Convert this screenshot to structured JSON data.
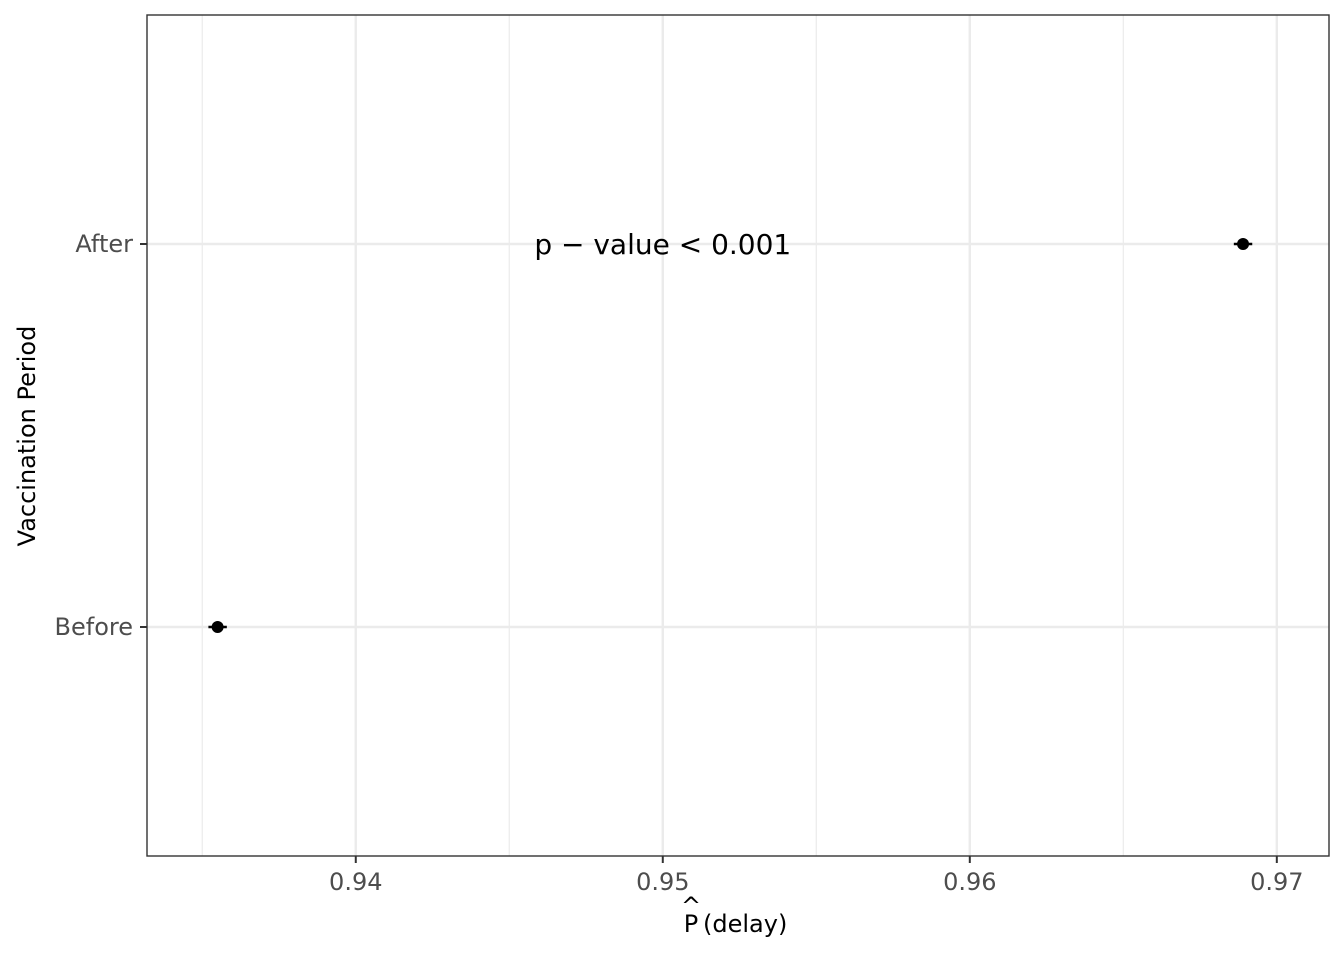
{
  "chart_data": {
    "type": "scatter",
    "xlabel": "(delay)",
    "xlabel_symbol": "P",
    "xlabel_hat": "^",
    "ylabel": "Vaccination Period",
    "xlim": [
      0.9332,
      0.9717
    ],
    "x_ticks": [
      0.94,
      0.95,
      0.96,
      0.97
    ],
    "x_tick_labels": [
      "0.94",
      "0.95",
      "0.96",
      "0.97"
    ],
    "x_minor_ticks": [
      0.935,
      0.945,
      0.955,
      0.965
    ],
    "categories": [
      "Before",
      "After"
    ],
    "points": [
      {
        "category": "After",
        "x": 0.9689,
        "ci_low": 0.9686,
        "ci_high": 0.9692
      },
      {
        "category": "Before",
        "x": 0.9355,
        "ci_low": 0.9352,
        "ci_high": 0.9358
      }
    ],
    "annotation": {
      "text": "p − value < 0.001",
      "x": 0.95,
      "category": "After"
    },
    "grid": true,
    "legend": "none",
    "colors": {
      "point": "#000000",
      "grid": "#ebebeb",
      "border": "#333333",
      "tick_text": "#4d4d4d"
    }
  }
}
